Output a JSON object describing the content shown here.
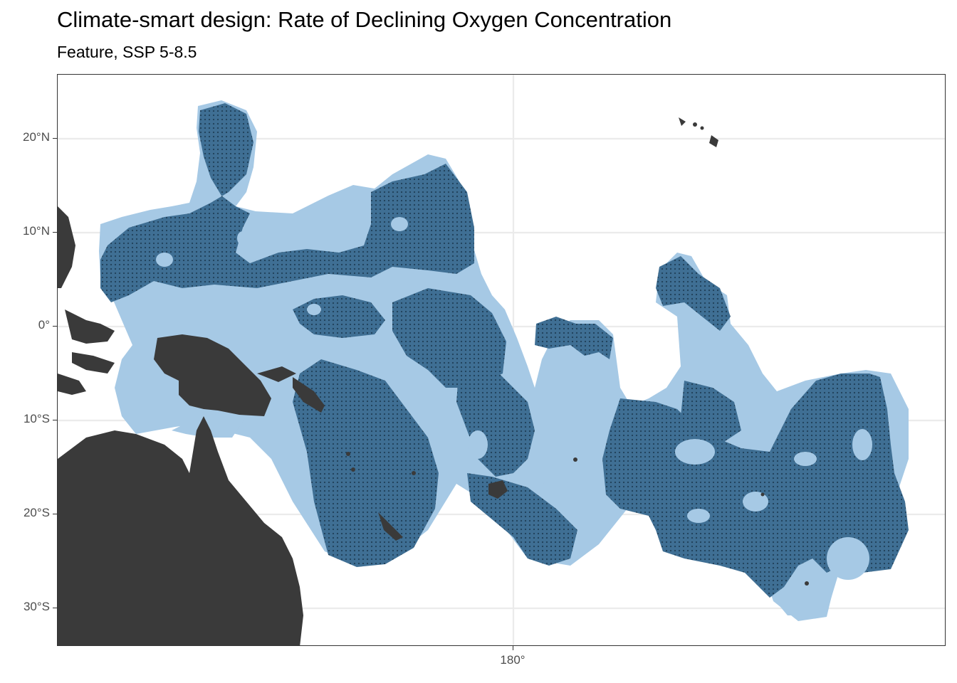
{
  "title": "Climate-smart design: Rate of Declining Oxygen Concentration",
  "subtitle": "Feature, SSP 5-8.5",
  "axes": {
    "y_ticks": [
      {
        "label": "20°N",
        "lat": 20
      },
      {
        "label": "10°N",
        "lat": 10
      },
      {
        "label": "0°",
        "lat": 0
      },
      {
        "label": "10°S",
        "lat": -10
      },
      {
        "label": "20°S",
        "lat": -20
      },
      {
        "label": "30°S",
        "lat": -30
      }
    ],
    "x_ticks": [
      {
        "label": "180°",
        "lon": 180
      }
    ]
  },
  "colors": {
    "planning_region": "#a6c9e5",
    "selected_feature": "#3f6f94",
    "land": "#3a3a3a",
    "grid": "#ebebeb",
    "border": "#333333"
  },
  "legend": null
}
